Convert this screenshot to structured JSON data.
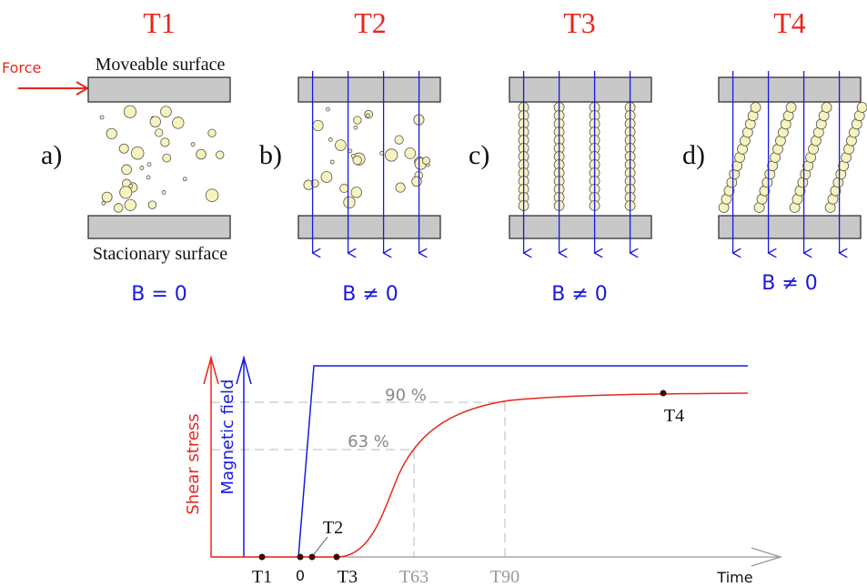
{
  "panels": [
    {
      "time": "T1",
      "letter": "a)",
      "field": "B = 0"
    },
    {
      "time": "T2",
      "letter": "b)",
      "field": "B ≠ 0"
    },
    {
      "time": "T3",
      "letter": "c)",
      "field": "B ≠ 0"
    },
    {
      "time": "T4",
      "letter": "d)",
      "field": "B ≠ 0"
    }
  ],
  "force": "Force",
  "top_surface": "Moveable surface",
  "bottom_surface": "Stacionary surface",
  "graph": {
    "y_axis_red": "Shear stress",
    "y_axis_blue": "Magnetic field",
    "x_axis": "Time",
    "level_90": "90 %",
    "level_63": "63 %",
    "points": {
      "t1": "T1",
      "zero": "0",
      "t2": "T2",
      "t3": "T3",
      "t4": "T4",
      "t63": "T63",
      "t90": "T90"
    }
  }
}
